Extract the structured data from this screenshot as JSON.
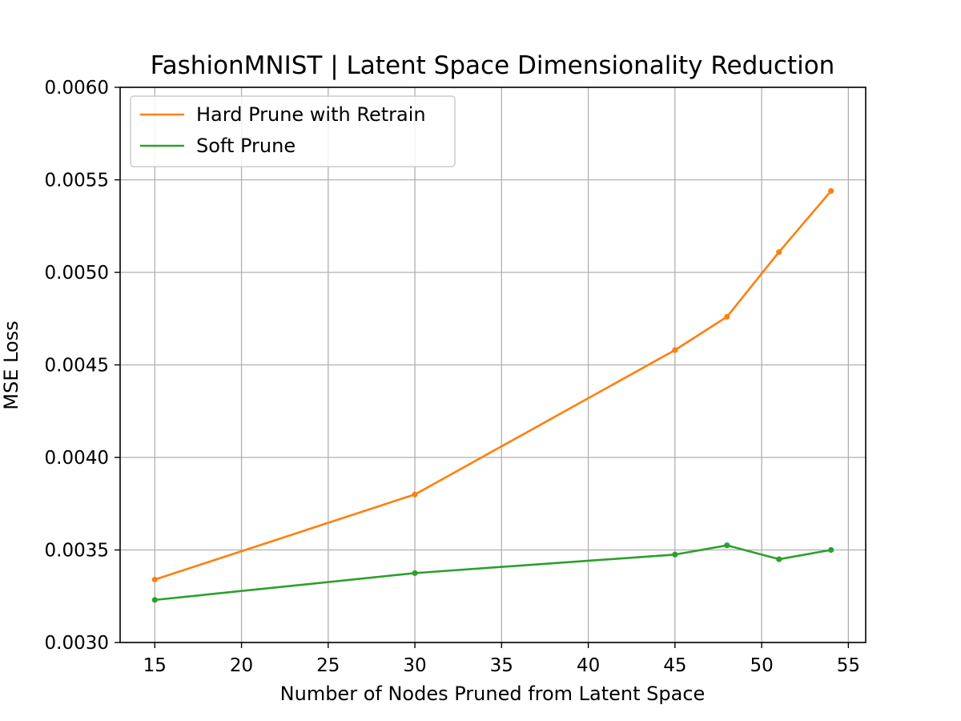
{
  "chart_data": {
    "type": "line",
    "title": "FashionMNIST | Latent Space Dimensionality Reduction",
    "xlabel": "Number of Nodes Pruned from Latent Space",
    "ylabel": "MSE Loss",
    "xlim": [
      13,
      56
    ],
    "ylim": [
      0.003,
      0.006
    ],
    "xticks": [
      15,
      20,
      25,
      30,
      35,
      40,
      45,
      50,
      55
    ],
    "yticks": [
      0.003,
      0.0035,
      0.004,
      0.0045,
      0.005,
      0.0055,
      0.006
    ],
    "ytick_labels": [
      "0.0030",
      "0.0035",
      "0.0040",
      "0.0045",
      "0.0050",
      "0.0055",
      "0.0060"
    ],
    "grid": true,
    "legend_position": "top-left",
    "series": [
      {
        "name": "Hard Prune with Retrain",
        "color": "#ff7f0e",
        "x": [
          15,
          30,
          45,
          48,
          51,
          54
        ],
        "values": [
          0.00334,
          0.0038,
          0.00458,
          0.00476,
          0.00511,
          0.00544
        ]
      },
      {
        "name": "Soft Prune",
        "color": "#2ca02c",
        "x": [
          15,
          30,
          45,
          48,
          51,
          54
        ],
        "values": [
          0.00323,
          0.003375,
          0.003475,
          0.003525,
          0.00345,
          0.0035
        ]
      }
    ]
  }
}
